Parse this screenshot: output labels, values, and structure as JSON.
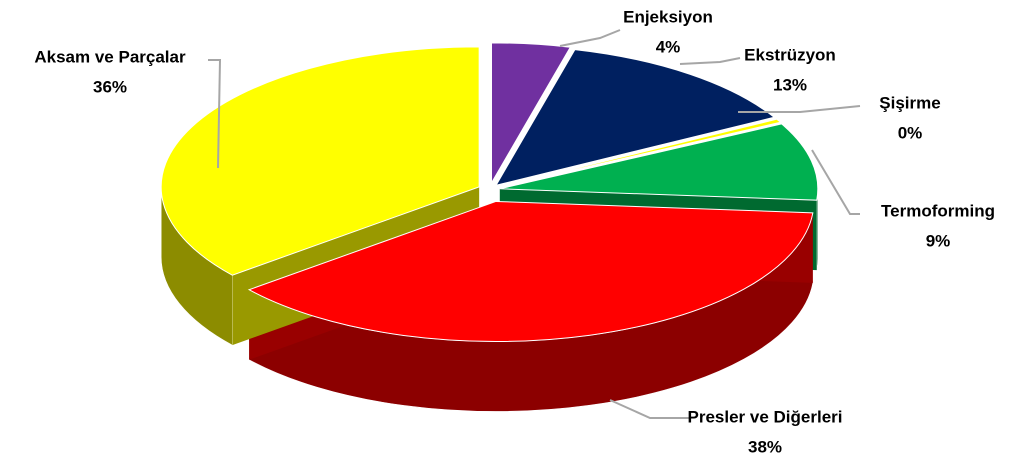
{
  "chart_data": {
    "type": "pie",
    "categories": [
      "Enjeksiyon",
      "Ekstrüzyon",
      "Şişirme",
      "Termoforming",
      "Presler ve Diğerleri",
      "Aksam ve Parçalar"
    ],
    "values": [
      4,
      13,
      0.4,
      9,
      38,
      36
    ],
    "value_labels": [
      "4%",
      "13%",
      "0%",
      "9%",
      "38%",
      "36%"
    ],
    "colors": [
      "#7030a0",
      "#002060",
      "#ffff00",
      "#00b050",
      "#ff0000",
      "#ffff00"
    ]
  }
}
